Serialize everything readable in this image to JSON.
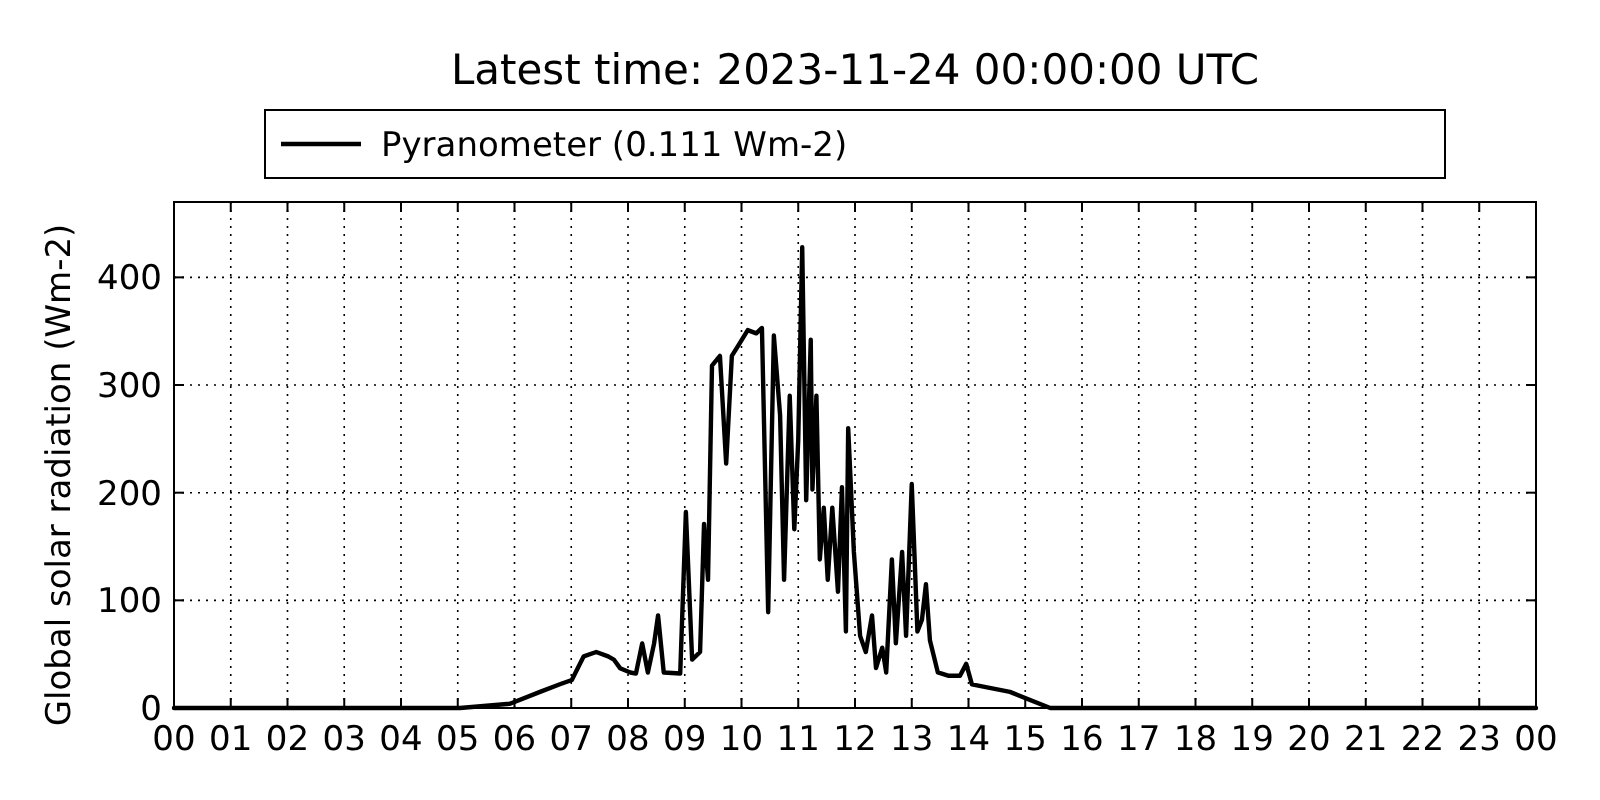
{
  "chart_data": {
    "type": "line",
    "title": "Latest time: 2023-11-24 00:00:00 UTC",
    "ylabel": "Global solar radiation (Wm-2)",
    "legend": "top",
    "grid": true,
    "line_style": "solid",
    "xlim": [
      0,
      24
    ],
    "ylim": [
      0,
      470
    ],
    "xticks": [
      {
        "value": 0,
        "label": "00"
      },
      {
        "value": 1,
        "label": "01"
      },
      {
        "value": 2,
        "label": "02"
      },
      {
        "value": 3,
        "label": "03"
      },
      {
        "value": 4,
        "label": "04"
      },
      {
        "value": 5,
        "label": "05"
      },
      {
        "value": 6,
        "label": "06"
      },
      {
        "value": 7,
        "label": "07"
      },
      {
        "value": 8,
        "label": "08"
      },
      {
        "value": 9,
        "label": "09"
      },
      {
        "value": 10,
        "label": "10"
      },
      {
        "value": 11,
        "label": "11"
      },
      {
        "value": 12,
        "label": "12"
      },
      {
        "value": 13,
        "label": "13"
      },
      {
        "value": 14,
        "label": "14"
      },
      {
        "value": 15,
        "label": "15"
      },
      {
        "value": 16,
        "label": "16"
      },
      {
        "value": 17,
        "label": "17"
      },
      {
        "value": 18,
        "label": "18"
      },
      {
        "value": 19,
        "label": "19"
      },
      {
        "value": 20,
        "label": "20"
      },
      {
        "value": 21,
        "label": "21"
      },
      {
        "value": 22,
        "label": "22"
      },
      {
        "value": 23,
        "label": "23"
      },
      {
        "value": 24,
        "label": "00"
      }
    ],
    "yticks": [
      0,
      100,
      200,
      300,
      400
    ],
    "series": [
      {
        "name": "Pyranometer (0.111 Wm-2)",
        "color": "#000000",
        "x": [
          0,
          5.04,
          5.92,
          6.45,
          6.8,
          7.01,
          7.22,
          7.44,
          7.65,
          7.75,
          7.86,
          8.04,
          8.14,
          8.25,
          8.35,
          8.46,
          8.53,
          8.63,
          8.92,
          9.02,
          9.13,
          9.27,
          9.34,
          9.41,
          9.48,
          9.62,
          9.73,
          9.83,
          9.97,
          10.11,
          10.26,
          10.36,
          10.47,
          10.57,
          10.68,
          10.75,
          10.85,
          10.93,
          11.0,
          11.07,
          11.14,
          11.22,
          11.25,
          11.32,
          11.38,
          11.45,
          11.52,
          11.6,
          11.7,
          11.77,
          11.84,
          11.88,
          11.98,
          12.09,
          12.19,
          12.3,
          12.37,
          12.48,
          12.55,
          12.65,
          12.72,
          12.83,
          12.9,
          13.0,
          13.1,
          13.18,
          13.25,
          13.32,
          13.46,
          13.64,
          13.85,
          13.96,
          14.06,
          14.73,
          15.44,
          24
        ],
        "values": [
          0,
          0,
          4,
          15,
          22,
          26,
          48,
          52,
          48,
          45,
          37,
          33,
          32,
          60,
          33,
          60,
          86,
          33,
          32,
          182,
          45,
          52,
          171,
          119,
          318,
          327,
          227,
          327,
          339,
          351,
          348,
          353,
          89,
          346,
          272,
          119,
          290,
          166,
          249,
          428,
          193,
          342,
          203,
          290,
          138,
          186,
          119,
          186,
          108,
          205,
          71,
          260,
          145,
          67,
          52,
          86,
          37,
          56,
          33,
          138,
          60,
          145,
          67,
          208,
          71,
          82,
          115,
          63,
          33,
          30,
          30,
          41,
          22,
          15,
          0,
          0
        ]
      }
    ]
  }
}
